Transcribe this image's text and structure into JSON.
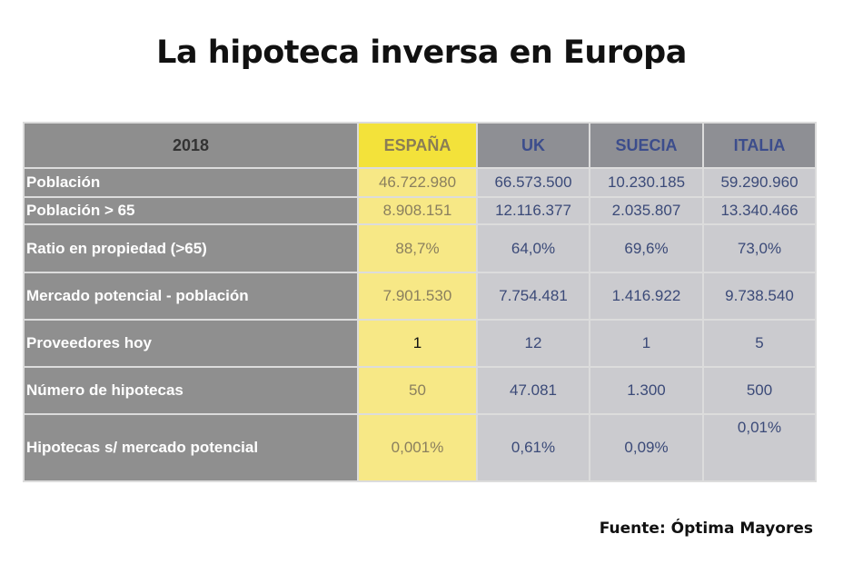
{
  "title": "La hipoteca inversa en Europa",
  "table": {
    "headers": [
      "2018",
      "ESPAÑA",
      "UK",
      "SUECIA",
      "ITALIA"
    ],
    "rows": [
      {
        "label": "Población",
        "values": [
          "46.722.980",
          "66.573.500",
          "10.230.185",
          "59.290.960"
        ]
      },
      {
        "label": "Población > 65",
        "values": [
          "8.908.151",
          "12.116.377",
          "2.035.807",
          "13.340.466"
        ]
      },
      {
        "label": "Ratio en propiedad (>65)",
        "values": [
          "88,7%",
          "64,0%",
          "69,6%",
          "73,0%"
        ]
      },
      {
        "label": "Mercado  potencial - población",
        "values": [
          "7.901.530",
          "7.754.481",
          "1.416.922",
          "9.738.540"
        ]
      },
      {
        "label": "Proveedores hoy",
        "values": [
          "1",
          "12",
          "1",
          "5"
        ]
      },
      {
        "label": "Número de hipotecas",
        "values": [
          "50",
          "47.081",
          "1.300",
          "500"
        ]
      },
      {
        "label": "Hipotecas s/  mercado  potencial",
        "values": [
          "0,001%",
          "0,61%",
          "0,09%",
          "0,01%"
        ]
      }
    ]
  },
  "colors": {
    "highlight": "#f3e23a",
    "highlight_cell": "#f7e886",
    "cell": "#cbcbcf",
    "label_bg": "#8f8f8f"
  },
  "source": "Fuente: Óptima Mayores"
}
